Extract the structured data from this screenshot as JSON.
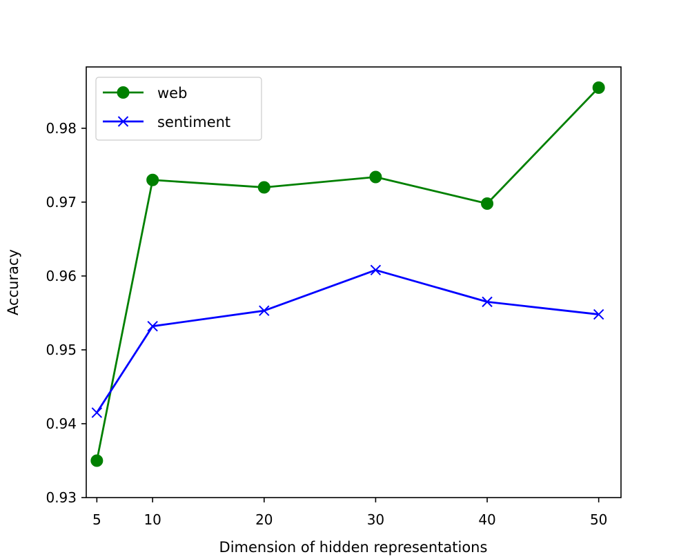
{
  "chart_data": {
    "type": "line",
    "title": "",
    "xlabel": "Dimension of hidden representations",
    "ylabel": "Accuracy",
    "x": [
      5,
      10,
      20,
      30,
      40,
      50
    ],
    "xticks": [
      5,
      10,
      20,
      30,
      40,
      50
    ],
    "yticks": [
      0.93,
      0.94,
      0.95,
      0.96,
      0.97,
      0.98
    ],
    "ytick_labels": [
      "0.93",
      "0.94",
      "0.95",
      "0.96",
      "0.97",
      "0.98"
    ],
    "xlim": [
      4.05,
      52.0
    ],
    "ylim": [
      0.93,
      0.9883
    ],
    "grid": false,
    "legend_position": "top-left",
    "series": [
      {
        "name": "web",
        "color": "#008000",
        "marker": "circle",
        "values": [
          0.935,
          0.973,
          0.972,
          0.9734,
          0.9698,
          0.9855
        ]
      },
      {
        "name": "sentiment",
        "color": "#0000ff",
        "marker": "x",
        "values": [
          0.9415,
          0.9532,
          0.9553,
          0.9608,
          0.9565,
          0.9548
        ]
      }
    ]
  }
}
